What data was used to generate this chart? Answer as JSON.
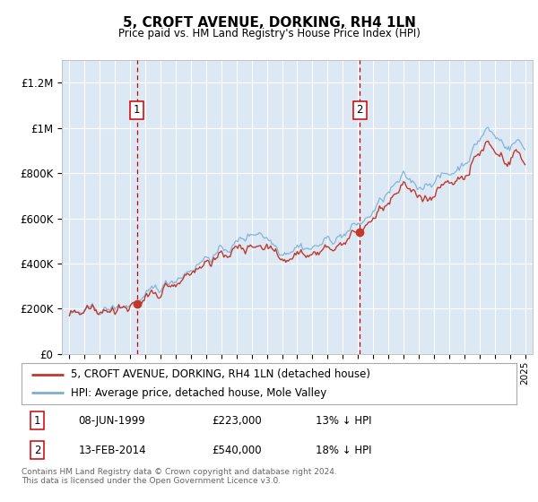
{
  "title": "5, CROFT AVENUE, DORKING, RH4 1LN",
  "subtitle": "Price paid vs. HM Land Registry's House Price Index (HPI)",
  "background_color": "#dce9f5",
  "plot_bg_color": "#dce9f5",
  "hpi_color": "#7bafd4",
  "price_color": "#c0392b",
  "vline_color": "#cc0000",
  "grid_color": "#ffffff",
  "ylim": [
    0,
    1300000
  ],
  "yticks": [
    0,
    200000,
    400000,
    600000,
    800000,
    1000000,
    1200000
  ],
  "ytick_labels": [
    "£0",
    "£200K",
    "£400K",
    "£600K",
    "£800K",
    "£1M",
    "£1.2M"
  ],
  "sale1_date": 1999.44,
  "sale1_price": 223000,
  "sale1_label": "1",
  "sale2_date": 2014.12,
  "sale2_price": 540000,
  "sale2_label": "2",
  "legend_line1": "5, CROFT AVENUE, DORKING, RH4 1LN (detached house)",
  "legend_line2": "HPI: Average price, detached house, Mole Valley",
  "footnote": "Contains HM Land Registry data © Crown copyright and database right 2024.\nThis data is licensed under the Open Government Licence v3.0.",
  "xmin": 1994.5,
  "xmax": 2025.5
}
